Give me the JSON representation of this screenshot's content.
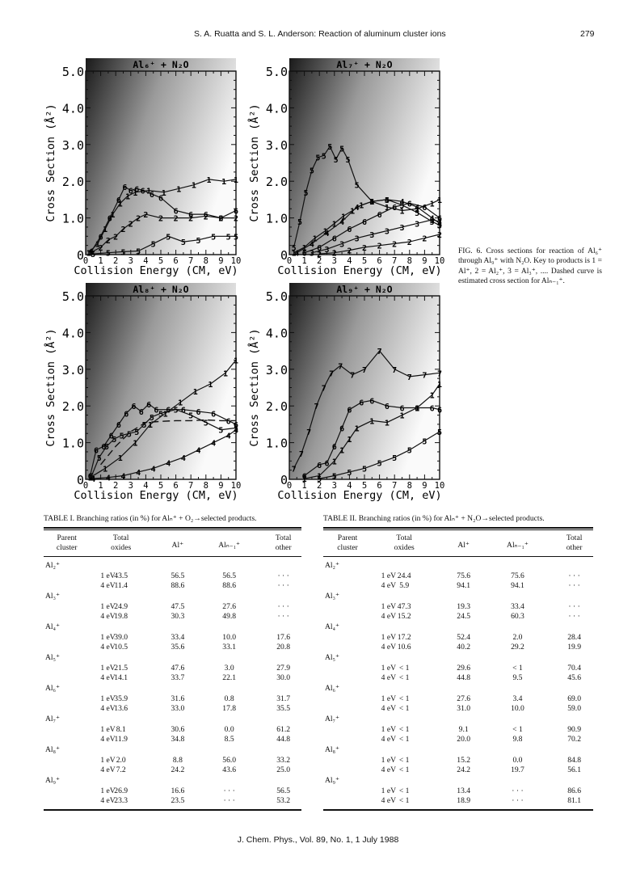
{
  "header": {
    "authors": "S. A. Ruatta and S. L. Anderson: Reaction of aluminum cluster ions",
    "page_number": "279"
  },
  "figure": {
    "caption_prefix": "FIG. 6.",
    "caption_text": "Cross sections for reaction of Al₆⁺ through Al₉⁺ with N₂O. Key to products is 1 = Al⁺, 2 = Al₂⁺, 3 = Al₃⁺, .... Dashed curve is estimated cross section for Alₙ₋₁⁺.",
    "xlabel": "Collision Energy (CM, eV)",
    "ylabel": "Cross Section (Å²)",
    "y_ticks": [
      "0",
      "1.0",
      "2.0",
      "3.0",
      "4.0",
      "5.0"
    ],
    "x_ticks": [
      "0",
      "1",
      "2",
      "3",
      "4",
      "5",
      "6",
      "7",
      "8",
      "9",
      "10"
    ]
  },
  "chart_data": [
    {
      "type": "line",
      "title": "Al₆⁺ + N₂O",
      "xlabel": "Collision Energy (CM, eV)",
      "ylabel": "Cross Section (Å²)",
      "xlim": [
        0,
        10
      ],
      "ylim": [
        0,
        5
      ],
      "series": [
        {
          "name": "1",
          "x": [
            0.2,
            0.8,
            1.3,
            1.8,
            2.3,
            2.8,
            3.3,
            4.2,
            5.2,
            6.2,
            7.2,
            8.2,
            9.2,
            10
          ],
          "y": [
            0.05,
            0.3,
            0.7,
            1.1,
            1.4,
            1.6,
            1.7,
            1.75,
            1.7,
            1.8,
            1.9,
            2.05,
            2.0,
            2.05
          ]
        },
        {
          "name": "2",
          "x": [
            0.3,
            1.0,
            1.5,
            2.0,
            2.5,
            3.0,
            3.5,
            4.0,
            5.0,
            6.0,
            7.0,
            8.0,
            9.0,
            10
          ],
          "y": [
            0.05,
            0.2,
            0.4,
            0.5,
            0.7,
            0.85,
            1.0,
            1.1,
            1.0,
            1.0,
            1.0,
            1.05,
            1.0,
            1.0
          ]
        },
        {
          "name": "5",
          "x": [
            0.5,
            1.5,
            2.5,
            3.5,
            4.5,
            5.5,
            6.5,
            7.5,
            8.5,
            9.5,
            10
          ],
          "y": [
            0.02,
            0.05,
            0.08,
            0.1,
            0.3,
            0.5,
            0.35,
            0.4,
            0.5,
            0.5,
            0.5
          ]
        },
        {
          "name": "6",
          "x": [
            0.4,
            1.0,
            1.6,
            2.2,
            2.6,
            3.0,
            3.4,
            3.8,
            4.4,
            5.0,
            6.0,
            7.0,
            8.0,
            9.0,
            10
          ],
          "y": [
            0.1,
            0.5,
            1.0,
            1.5,
            1.85,
            1.75,
            1.8,
            1.75,
            1.65,
            1.55,
            1.2,
            1.1,
            1.1,
            1.0,
            1.2
          ]
        }
      ]
    },
    {
      "type": "line",
      "title": "Al₇⁺ + N₂O",
      "xlabel": "Collision Energy (CM, eV)",
      "ylabel": "Cross Section (Å²)",
      "xlim": [
        0,
        10
      ],
      "ylim": [
        0,
        5
      ],
      "series": [
        {
          "name": "5",
          "x": [
            0.3,
            0.7,
            1.1,
            1.5,
            1.9,
            2.3,
            2.7,
            3.1,
            3.5,
            3.9,
            4.5,
            5.5,
            6.5,
            7.5,
            8.5,
            9.5,
            10
          ],
          "y": [
            0.2,
            0.9,
            1.7,
            2.3,
            2.65,
            2.7,
            2.95,
            2.6,
            2.9,
            2.6,
            1.9,
            1.45,
            1.5,
            1.35,
            1.15,
            0.9,
            0.8
          ]
        },
        {
          "name": "1",
          "x": [
            0.3,
            1.0,
            1.7,
            2.4,
            3.0,
            3.6,
            4.2,
            4.8,
            5.5,
            6.5,
            7.5,
            8.5,
            9.5,
            10
          ],
          "y": [
            0.05,
            0.2,
            0.45,
            0.65,
            0.85,
            1.05,
            1.2,
            1.35,
            1.45,
            1.3,
            1.2,
            1.25,
            1.4,
            1.5
          ]
        },
        {
          "name": "4",
          "x": [
            0.5,
            1.5,
            2.5,
            3.5,
            4.5,
            5.5,
            6.5,
            7.5,
            8.5,
            9.5,
            10
          ],
          "y": [
            0.05,
            0.3,
            0.6,
            0.9,
            1.3,
            1.45,
            1.5,
            1.45,
            1.3,
            1.0,
            0.85
          ]
        },
        {
          "name": "6",
          "x": [
            1.0,
            2.0,
            3.0,
            4.0,
            5.0,
            6.0,
            7.0,
            8.0,
            9.0,
            10
          ],
          "y": [
            0.05,
            0.2,
            0.45,
            0.7,
            0.9,
            1.1,
            1.3,
            1.4,
            1.3,
            1.0
          ]
        },
        {
          "name": "3",
          "x": [
            1.5,
            2.5,
            3.5,
            4.5,
            5.5,
            6.5,
            7.5,
            8.5,
            9.5,
            10
          ],
          "y": [
            0.05,
            0.15,
            0.3,
            0.45,
            0.55,
            0.65,
            0.75,
            0.85,
            0.95,
            0.9
          ]
        },
        {
          "name": "2",
          "x": [
            2.0,
            3.0,
            4.0,
            5.0,
            6.0,
            7.0,
            8.0,
            9.0,
            10
          ],
          "y": [
            0.02,
            0.05,
            0.12,
            0.2,
            0.25,
            0.3,
            0.35,
            0.45,
            0.55
          ]
        }
      ]
    },
    {
      "type": "line",
      "title": "Al₈⁺ + N₂O",
      "xlabel": "Collision Energy (CM, eV)",
      "ylabel": "Cross Section (Å²)",
      "xlim": [
        0,
        10
      ],
      "ylim": [
        0,
        5
      ],
      "series": [
        {
          "name": "6",
          "x": [
            0.3,
            0.7,
            1.2,
            1.7,
            2.2,
            2.7,
            3.2,
            3.7,
            4.2,
            4.7,
            5.5,
            6.5,
            7.5,
            8.5,
            9.5,
            10
          ],
          "y": [
            0.1,
            0.8,
            0.9,
            1.2,
            1.5,
            1.8,
            2.0,
            1.85,
            2.05,
            1.9,
            1.9,
            1.9,
            1.85,
            1.8,
            1.6,
            1.5
          ]
        },
        {
          "name": "5",
          "x": [
            0.4,
            0.9,
            1.4,
            1.9,
            2.4,
            2.9,
            3.4,
            3.9,
            4.4,
            5.0,
            6.0,
            7.0,
            8.0,
            9.0,
            10
          ],
          "y": [
            0.1,
            0.6,
            0.9,
            1.1,
            1.2,
            1.25,
            1.3,
            1.5,
            1.7,
            1.8,
            1.9,
            1.75,
            1.55,
            1.35,
            1.4
          ]
        },
        {
          "name": "1",
          "x": [
            0.3,
            1.3,
            2.3,
            3.3,
            4.3,
            5.3,
            6.3,
            7.3,
            8.3,
            9.3,
            10
          ],
          "y": [
            0.05,
            0.3,
            0.6,
            1.0,
            1.5,
            1.8,
            2.1,
            2.4,
            2.6,
            2.9,
            3.25
          ]
        },
        {
          "name": "4",
          "x": [
            0.5,
            1.5,
            2.5,
            3.5,
            4.5,
            5.5,
            6.5,
            7.5,
            8.5,
            9.5,
            10
          ],
          "y": [
            0.02,
            0.05,
            0.1,
            0.2,
            0.3,
            0.45,
            0.6,
            0.8,
            1.0,
            1.2,
            1.35
          ]
        },
        {
          "name": "Alₙ₋₁⁺",
          "x": [
            1.0,
            2.0,
            3.0,
            4.0,
            5.0,
            6.0,
            7.0,
            8.0,
            9.0,
            10
          ],
          "y": [
            0.4,
            0.9,
            1.3,
            1.55,
            1.58,
            1.6,
            1.6,
            1.62,
            1.6,
            1.6
          ],
          "style": "dashed"
        }
      ]
    },
    {
      "type": "line",
      "title": "Al₉⁺ + N₂O",
      "xlabel": "Collision Energy (CM, eV)",
      "ylabel": "Cross Section (Å²)",
      "xlim": [
        0,
        10
      ],
      "ylim": [
        0,
        5
      ],
      "series": [
        {
          "name": "7",
          "x": [
            0.3,
            0.8,
            1.3,
            1.8,
            2.3,
            2.8,
            3.4,
            4.2,
            5.0,
            6.0,
            7.0,
            8.0,
            9.0,
            10
          ],
          "y": [
            0.3,
            0.7,
            1.3,
            2.0,
            2.5,
            2.9,
            3.1,
            2.85,
            3.0,
            3.5,
            3.0,
            2.8,
            2.85,
            2.9
          ]
        },
        {
          "name": "6",
          "x": [
            1.0,
            2.0,
            2.5,
            3.0,
            3.5,
            4.0,
            4.8,
            5.5,
            6.5,
            7.5,
            8.5,
            9.5,
            10
          ],
          "y": [
            0.1,
            0.4,
            0.45,
            0.9,
            1.4,
            1.9,
            2.1,
            2.15,
            2.0,
            1.95,
            1.95,
            1.95,
            1.9
          ]
        },
        {
          "name": "1",
          "x": [
            1.0,
            2.0,
            3.0,
            3.5,
            4.0,
            4.5,
            5.5,
            6.5,
            7.5,
            8.5,
            9.5,
            10
          ],
          "y": [
            0.02,
            0.1,
            0.5,
            0.8,
            1.1,
            1.4,
            1.6,
            1.55,
            1.75,
            1.95,
            2.3,
            2.6
          ]
        },
        {
          "name": "5",
          "x": [
            2.0,
            3.0,
            4.0,
            5.0,
            6.0,
            7.0,
            8.0,
            9.0,
            10
          ],
          "y": [
            0.02,
            0.1,
            0.2,
            0.3,
            0.45,
            0.6,
            0.8,
            1.05,
            1.3
          ]
        }
      ]
    }
  ],
  "table1": {
    "caption": "TABLE I. Branching ratios (in %) for Alₙ⁺ + O₂→selected products.",
    "headers": [
      "Parent cluster",
      "Total oxides",
      "Al⁺",
      "Alₙ₋₁⁺",
      "Total other"
    ],
    "groups": [
      {
        "cluster": "Al₂⁺",
        "rows": [
          [
            "1 eV",
            "43.5",
            "56.5",
            "56.5",
            "· · ·"
          ],
          [
            "4 eV",
            "11.4",
            "88.6",
            "88.6",
            "· · ·"
          ]
        ]
      },
      {
        "cluster": "Al₃⁺",
        "rows": [
          [
            "1 eV",
            "24.9",
            "47.5",
            "27.6",
            "· · ·"
          ],
          [
            "4 eV",
            "19.8",
            "30.3",
            "49.8",
            "· · ·"
          ]
        ]
      },
      {
        "cluster": "Al₄⁺",
        "rows": [
          [
            "1 eV",
            "39.0",
            "33.4",
            "10.0",
            "17.6"
          ],
          [
            "4 eV",
            "10.5",
            "35.6",
            "33.1",
            "20.8"
          ]
        ]
      },
      {
        "cluster": "Al₅⁺",
        "rows": [
          [
            "1 eV",
            "21.5",
            "47.6",
            "3.0",
            "27.9"
          ],
          [
            "4 eV",
            "14.1",
            "33.7",
            "22.1",
            "30.0"
          ]
        ]
      },
      {
        "cluster": "Al₆⁺",
        "rows": [
          [
            "1 eV",
            "35.9",
            "31.6",
            "0.8",
            "31.7"
          ],
          [
            "4 eV",
            "13.6",
            "33.0",
            "17.8",
            "35.5"
          ]
        ]
      },
      {
        "cluster": "Al₇⁺",
        "rows": [
          [
            "1 eV",
            "8.1",
            "30.6",
            "0.0",
            "61.2"
          ],
          [
            "4 eV",
            "11.9",
            "34.8",
            "8.5",
            "44.8"
          ]
        ]
      },
      {
        "cluster": "Al₈⁺",
        "rows": [
          [
            "1 eV",
            "2.0",
            "8.8",
            "56.0",
            "33.2"
          ],
          [
            "4 eV",
            "7.2",
            "24.2",
            "43.6",
            "25.0"
          ]
        ]
      },
      {
        "cluster": "Al₉⁺",
        "rows": [
          [
            "1 eV",
            "26.9",
            "16.6",
            "· · ·",
            "56.5"
          ],
          [
            "4 eV",
            "23.3",
            "23.5",
            "· · ·",
            "53.2"
          ]
        ]
      }
    ]
  },
  "table2": {
    "caption": "TABLE II. Branching ratios (in %) for Alₙ⁺ + N₂O→selected products.",
    "headers": [
      "Parent cluster",
      "Total oxides",
      "Al⁺",
      "Alₙ₋₁⁺",
      "Total other"
    ],
    "groups": [
      {
        "cluster": "Al₂⁺",
        "rows": [
          [
            "1 eV",
            "24.4",
            "75.6",
            "75.6",
            "· · ·"
          ],
          [
            "4 eV",
            "5.9",
            "94.1",
            "94.1",
            "· · ·"
          ]
        ]
      },
      {
        "cluster": "Al₃⁺",
        "rows": [
          [
            "1 eV",
            "47.3",
            "19.3",
            "33.4",
            "· · ·"
          ],
          [
            "4 eV",
            "15.2",
            "24.5",
            "60.3",
            "· · ·"
          ]
        ]
      },
      {
        "cluster": "Al₄⁺",
        "rows": [
          [
            "1 eV",
            "17.2",
            "52.4",
            "2.0",
            "28.4"
          ],
          [
            "4 eV",
            "10.6",
            "40.2",
            "29.2",
            "19.9"
          ]
        ]
      },
      {
        "cluster": "Al₅⁺",
        "rows": [
          [
            "1 eV",
            "< 1",
            "29.6",
            "< 1",
            "70.4"
          ],
          [
            "4 eV",
            "< 1",
            "44.8",
            "9.5",
            "45.6"
          ]
        ]
      },
      {
        "cluster": "Al₆⁺",
        "rows": [
          [
            "1 eV",
            "< 1",
            "27.6",
            "3.4",
            "69.0"
          ],
          [
            "4 eV",
            "< 1",
            "31.0",
            "10.0",
            "59.0"
          ]
        ]
      },
      {
        "cluster": "Al₇⁺",
        "rows": [
          [
            "1 eV",
            "< 1",
            "9.1",
            "< 1",
            "90.9"
          ],
          [
            "4 eV",
            "< 1",
            "20.0",
            "9.8",
            "70.2"
          ]
        ]
      },
      {
        "cluster": "Al₈⁺",
        "rows": [
          [
            "1 eV",
            "< 1",
            "15.2",
            "0.0",
            "84.8"
          ],
          [
            "4 eV",
            "< 1",
            "24.2",
            "19.7",
            "56.1"
          ]
        ]
      },
      {
        "cluster": "Al₉⁺",
        "rows": [
          [
            "1 eV",
            "< 1",
            "13.4",
            "· · ·",
            "86.6"
          ],
          [
            "4 eV",
            "< 1",
            "18.9",
            "· · ·",
            "81.1"
          ]
        ]
      }
    ]
  },
  "footer": "J. Chem. Phys., Vol. 89, No. 1, 1 July 1988"
}
